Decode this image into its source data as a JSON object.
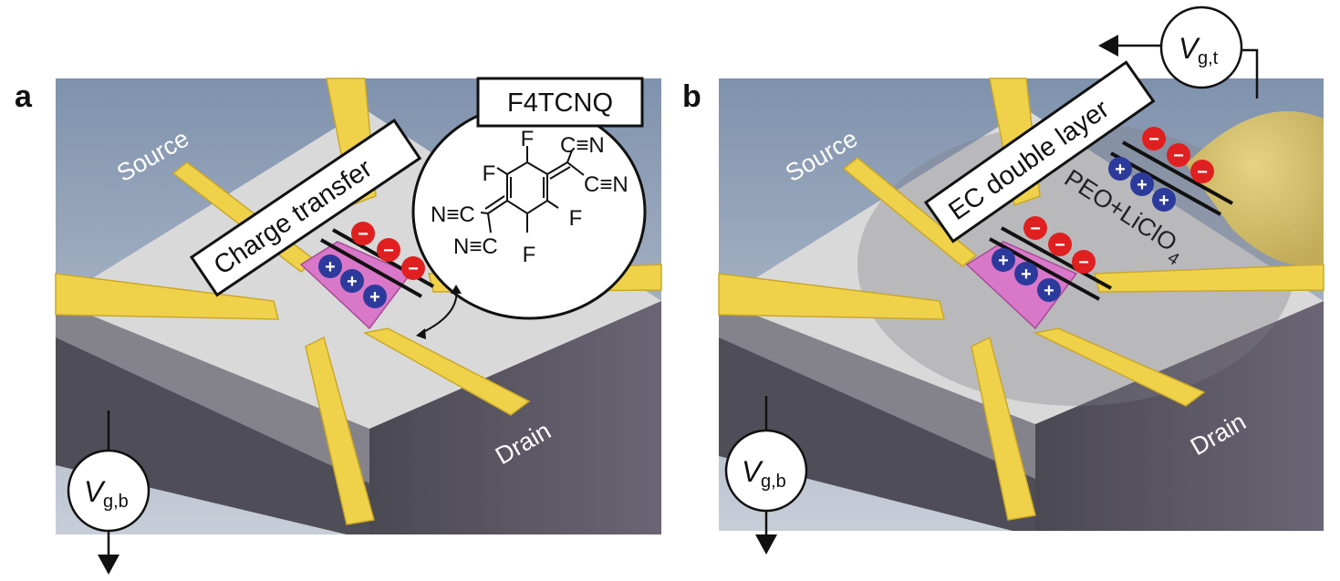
{
  "panels": {
    "a": {
      "letter": "a",
      "source_label": "Source",
      "drain_label": "Drain",
      "mechanism_label": "Charge transfer",
      "molecule_name": "F4TCNQ",
      "molecule_atoms": {
        "f1": "F",
        "f2": "F",
        "f3": "F",
        "f4": "F",
        "cn1": "C≡N",
        "cn2": "C≡N",
        "nc1": "N≡C",
        "nc2": "N≡C"
      },
      "gate": {
        "v": "V",
        "sub": "g,b"
      },
      "plus_signs": [
        "+",
        "+",
        "+"
      ],
      "minus_signs": [
        "−",
        "−",
        "−"
      ]
    },
    "b": {
      "letter": "b",
      "source_label": "Source",
      "drain_label": "Drain",
      "mechanism_label": "EC double layer",
      "electrolyte_label": "PEO+LiClO",
      "electrolyte_sub": "4",
      "bottom_gate": {
        "v": "V",
        "sub": "g,b"
      },
      "top_gate": {
        "v": "V",
        "sub": "g,t"
      },
      "plus_signs": [
        "+",
        "+",
        "+",
        "+",
        "+",
        "+"
      ],
      "minus_signs": [
        "−",
        "−",
        "−",
        "−",
        "−",
        "−"
      ]
    }
  },
  "colors": {
    "gold": "#f0d24a",
    "gold_dark": "#c9a82a",
    "substrate_top": "#d8d8d8",
    "substrate_side": "#5c5a66",
    "channel": "#d977c8",
    "plus": "#2c3a9c",
    "minus": "#e02020",
    "background_panel": "#7d8fa8"
  }
}
